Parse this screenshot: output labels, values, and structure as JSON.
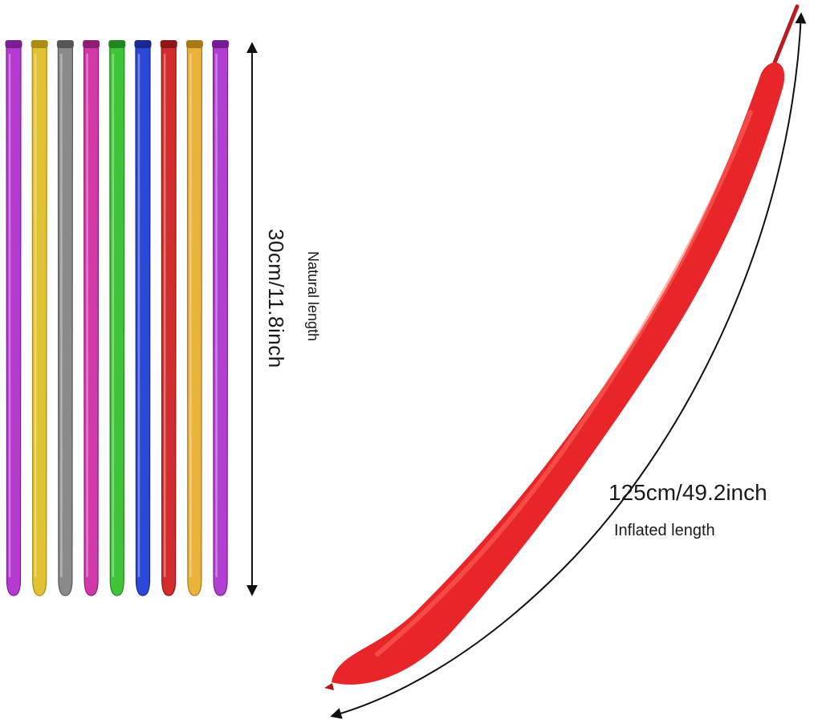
{
  "natural": {
    "measure": "30cm/11.8inch",
    "caption": "Natural length",
    "balloons": [
      {
        "name": "purple",
        "color": "#b43ad0",
        "dark": "#7a1f93"
      },
      {
        "name": "yellow",
        "color": "#e0c232",
        "dark": "#a88d12"
      },
      {
        "name": "silver",
        "color": "#8a8a8a",
        "dark": "#555555"
      },
      {
        "name": "magenta",
        "color": "#cf3aa8",
        "dark": "#8f1e72"
      },
      {
        "name": "green",
        "color": "#3fc43a",
        "dark": "#23851f"
      },
      {
        "name": "blue",
        "color": "#2c48d6",
        "dark": "#18288f"
      },
      {
        "name": "red",
        "color": "#d32c2c",
        "dark": "#8f1616"
      },
      {
        "name": "gold",
        "color": "#e9b23a",
        "dark": "#a77a17"
      },
      {
        "name": "violet",
        "color": "#b23fd2",
        "dark": "#741e93"
      }
    ]
  },
  "inflated": {
    "measure": "125cm/49.2inch",
    "caption": "Inflated length",
    "color": "#e8262a",
    "highlight": "#ff6a5a",
    "shadow": "#b5141a"
  }
}
